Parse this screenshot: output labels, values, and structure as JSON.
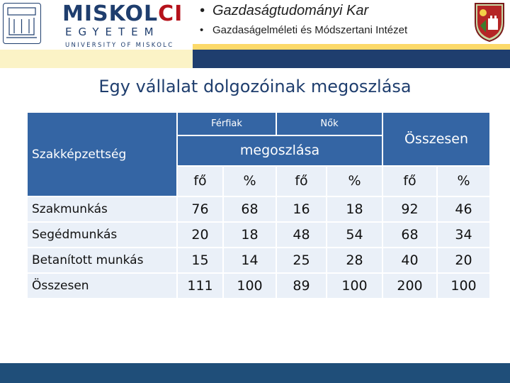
{
  "header": {
    "logo_main": "MISKOL",
    "logo_accent": "CI",
    "logo_sub": "EGYETEM",
    "logo_tagline": "UNIVERSITY OF MISKOLC",
    "bullet": "•",
    "faculty": "Gazdaságtudományi Kar",
    "institute": "Gazdaságelméleti és Módszertani Intézet"
  },
  "title": "Egy vállalat dolgozóinak megoszlása",
  "table": {
    "row_header": "Szakképzettség",
    "men": "Férfiak",
    "women": "Nők",
    "distribution": "megoszlása",
    "total_header": "Összesen",
    "units": [
      "fő",
      "%",
      "fő",
      "%",
      "fő",
      "%"
    ],
    "rows": [
      {
        "label": "Szakmunkás",
        "values": [
          "76",
          "68",
          "16",
          "18",
          "92",
          "46"
        ]
      },
      {
        "label": "Segédmunkás",
        "values": [
          "20",
          "18",
          "48",
          "54",
          "68",
          "34"
        ]
      },
      {
        "label": "Betanított munkás",
        "values": [
          "15",
          "14",
          "25",
          "28",
          "40",
          "20"
        ]
      },
      {
        "label": "Összesen",
        "values": [
          "111",
          "100",
          "89",
          "100",
          "200",
          "100"
        ]
      }
    ]
  },
  "colors": {
    "header_blue": "#3465a4",
    "cell_bg": "#eaf0f8",
    "navy": "#1f3e6e",
    "yellow": "#fcd96a",
    "footer": "#1f4e79"
  }
}
